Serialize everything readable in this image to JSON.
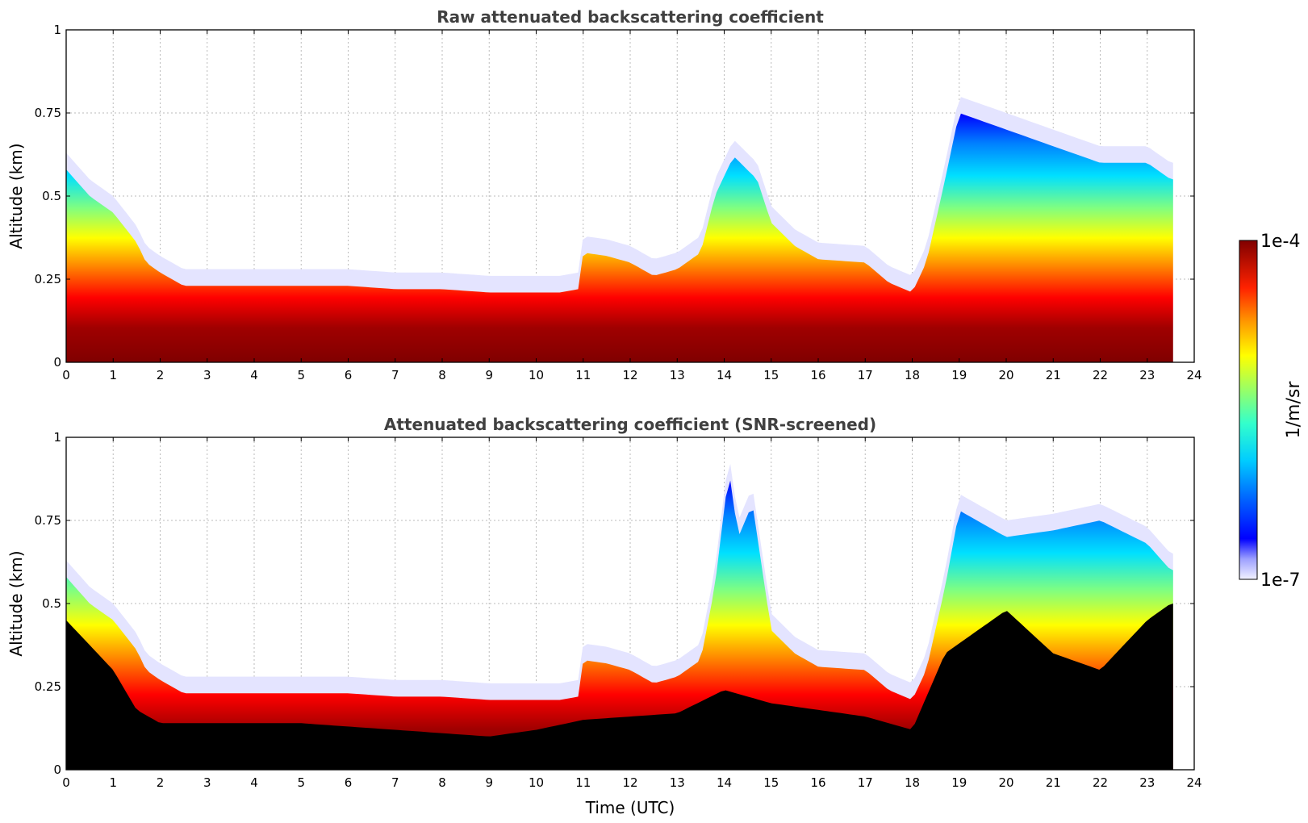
{
  "chart_data": [
    {
      "type": "heatmap",
      "title": "Raw attenuated backscattering coefficient",
      "xlabel": "",
      "ylabel": "Altitude (km)",
      "xlim": [
        0,
        24
      ],
      "ylim": [
        0,
        1
      ],
      "xticks": [
        "0",
        "1",
        "2",
        "3",
        "4",
        "5",
        "6",
        "7",
        "8",
        "9",
        "10",
        "11",
        "12",
        "13",
        "14",
        "15",
        "16",
        "17",
        "18",
        "19",
        "20",
        "21",
        "22",
        "23",
        "24"
      ],
      "yticks": [
        "0",
        "0.25",
        "0.5",
        "0.75",
        "1"
      ],
      "grid": true,
      "data_end_time": 23.55,
      "layer_top_km": [
        [
          0,
          0.58
        ],
        [
          0.5,
          0.5
        ],
        [
          1,
          0.45
        ],
        [
          1.5,
          0.36
        ],
        [
          1.7,
          0.3
        ],
        [
          2,
          0.27
        ],
        [
          2.5,
          0.23
        ],
        [
          3,
          0.23
        ],
        [
          4,
          0.23
        ],
        [
          5,
          0.23
        ],
        [
          6,
          0.23
        ],
        [
          7,
          0.22
        ],
        [
          8,
          0.22
        ],
        [
          9,
          0.21
        ],
        [
          10.5,
          0.21
        ],
        [
          10.9,
          0.22
        ],
        [
          11,
          0.33
        ],
        [
          11.5,
          0.32
        ],
        [
          12,
          0.3
        ],
        [
          12.5,
          0.26
        ],
        [
          13,
          0.28
        ],
        [
          13.5,
          0.33
        ],
        [
          13.8,
          0.5
        ],
        [
          14.2,
          0.62
        ],
        [
          14.7,
          0.55
        ],
        [
          15,
          0.42
        ],
        [
          15.5,
          0.35
        ],
        [
          16,
          0.31
        ],
        [
          17,
          0.3
        ],
        [
          17.5,
          0.24
        ],
        [
          18,
          0.21
        ],
        [
          18.3,
          0.3
        ],
        [
          18.7,
          0.55
        ],
        [
          19,
          0.75
        ],
        [
          20,
          0.7
        ],
        [
          21,
          0.65
        ],
        [
          22,
          0.6
        ],
        [
          23,
          0.6
        ],
        [
          23.5,
          0.55
        ]
      ],
      "black_top_km": null,
      "colorbar": {
        "label": "1/m/sr",
        "min_label": "1e-7",
        "max_label": "1e-4",
        "scale": "log"
      }
    },
    {
      "type": "heatmap",
      "title": "Attenuated backscattering coefficient (SNR-screened)",
      "xlabel": "Time (UTC)",
      "ylabel": "Altitude (km)",
      "xlim": [
        0,
        24
      ],
      "ylim": [
        0,
        1
      ],
      "xticks": [
        "0",
        "1",
        "2",
        "3",
        "4",
        "5",
        "6",
        "7",
        "8",
        "9",
        "10",
        "11",
        "12",
        "13",
        "14",
        "15",
        "16",
        "17",
        "18",
        "19",
        "20",
        "21",
        "22",
        "23",
        "24"
      ],
      "yticks": [
        "0",
        "0.25",
        "0.5",
        "0.75",
        "1"
      ],
      "grid": true,
      "data_end_time": 23.55,
      "layer_top_km": [
        [
          0,
          0.58
        ],
        [
          0.5,
          0.5
        ],
        [
          1,
          0.45
        ],
        [
          1.5,
          0.36
        ],
        [
          1.7,
          0.3
        ],
        [
          2,
          0.27
        ],
        [
          2.5,
          0.23
        ],
        [
          3,
          0.23
        ],
        [
          4,
          0.23
        ],
        [
          5,
          0.23
        ],
        [
          6,
          0.23
        ],
        [
          7,
          0.22
        ],
        [
          8,
          0.22
        ],
        [
          9,
          0.21
        ],
        [
          10.5,
          0.21
        ],
        [
          10.9,
          0.22
        ],
        [
          11,
          0.33
        ],
        [
          11.5,
          0.32
        ],
        [
          12,
          0.3
        ],
        [
          12.5,
          0.26
        ],
        [
          13,
          0.28
        ],
        [
          13.5,
          0.33
        ],
        [
          13.8,
          0.55
        ],
        [
          14.1,
          0.9
        ],
        [
          14.3,
          0.7
        ],
        [
          14.6,
          0.8
        ],
        [
          15,
          0.42
        ],
        [
          15.5,
          0.35
        ],
        [
          16,
          0.31
        ],
        [
          17,
          0.3
        ],
        [
          17.5,
          0.24
        ],
        [
          18,
          0.21
        ],
        [
          18.3,
          0.3
        ],
        [
          18.7,
          0.55
        ],
        [
          19,
          0.78
        ],
        [
          20,
          0.7
        ],
        [
          21,
          0.72
        ],
        [
          22,
          0.75
        ],
        [
          23,
          0.68
        ],
        [
          23.5,
          0.6
        ]
      ],
      "black_top_km": [
        [
          0,
          0.45
        ],
        [
          1,
          0.3
        ],
        [
          1.5,
          0.18
        ],
        [
          2,
          0.14
        ],
        [
          5,
          0.14
        ],
        [
          7,
          0.12
        ],
        [
          9,
          0.1
        ],
        [
          10,
          0.12
        ],
        [
          11,
          0.15
        ],
        [
          13,
          0.17
        ],
        [
          14,
          0.24
        ],
        [
          15,
          0.2
        ],
        [
          16,
          0.18
        ],
        [
          17,
          0.16
        ],
        [
          18,
          0.12
        ],
        [
          18.7,
          0.35
        ],
        [
          20,
          0.48
        ],
        [
          21,
          0.35
        ],
        [
          22,
          0.3
        ],
        [
          23,
          0.45
        ],
        [
          23.5,
          0.5
        ]
      ],
      "colorbar": {
        "label": "1/m/sr",
        "min_label": "1e-7",
        "max_label": "1e-4",
        "scale": "log"
      }
    }
  ]
}
